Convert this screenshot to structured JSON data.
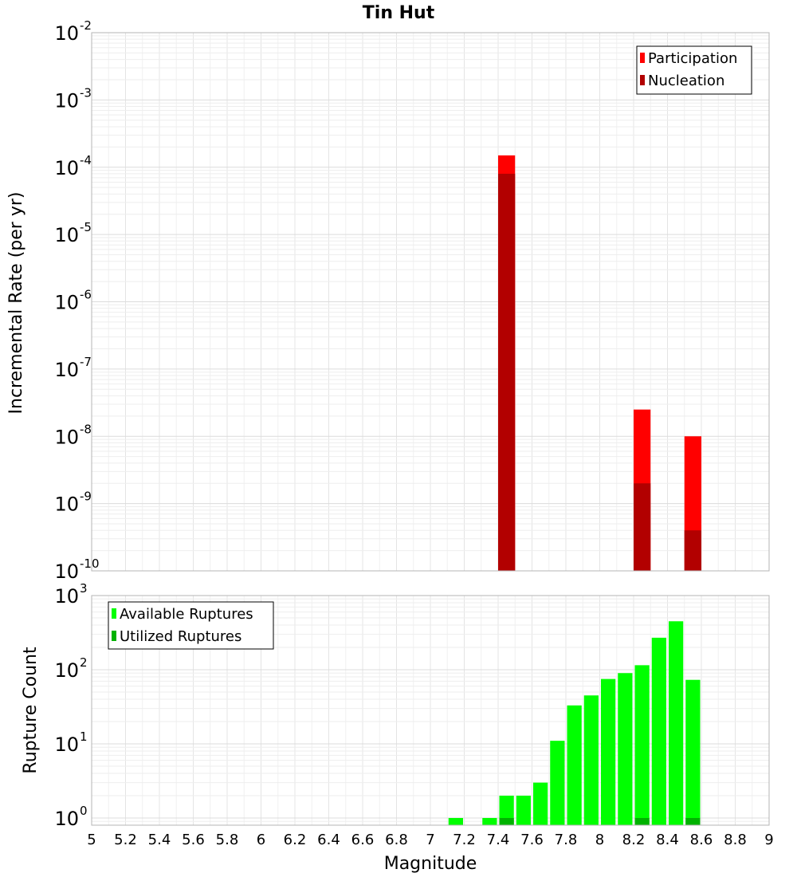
{
  "chart_data": [
    {
      "type": "bar",
      "title": "Tin Hut",
      "xlabel": "",
      "ylabel": "Incremental Rate (per yr)",
      "xlim": [
        5,
        9
      ],
      "ylim": [
        1e-10,
        0.01
      ],
      "yscale": "log",
      "bar_width": 0.1,
      "grid": true,
      "legend_position": "top-right",
      "colors": {
        "participation": "#ff0000",
        "nucleation": "#b20000"
      },
      "yticks": [
        {
          "base": "10",
          "exp": "-10"
        },
        {
          "base": "10",
          "exp": "-9"
        },
        {
          "base": "10",
          "exp": "-8"
        },
        {
          "base": "10",
          "exp": "-7"
        },
        {
          "base": "10",
          "exp": "-6"
        },
        {
          "base": "10",
          "exp": "-5"
        },
        {
          "base": "10",
          "exp": "-4"
        },
        {
          "base": "10",
          "exp": "-3"
        },
        {
          "base": "10",
          "exp": "-2"
        }
      ],
      "series": [
        {
          "name": "Participation",
          "x": [
            7.45,
            8.25,
            8.55
          ],
          "values": [
            0.00015,
            2.5e-08,
            1e-08
          ]
        },
        {
          "name": "Nucleation",
          "x": [
            7.45,
            8.25,
            8.55
          ],
          "values": [
            8e-05,
            2e-09,
            4e-10
          ]
        }
      ]
    },
    {
      "type": "bar",
      "title": "",
      "xlabel": "Magnitude",
      "ylabel": "Rupture Count",
      "xlim": [
        5,
        9
      ],
      "ylim": [
        0.8,
        1000
      ],
      "yscale": "log",
      "bar_width": 0.1,
      "grid": true,
      "legend_position": "top-left",
      "colors": {
        "available": "#00ff00",
        "utilized": "#00b200"
      },
      "xticks": [
        "5",
        "5.2",
        "5.4",
        "5.6",
        "5.8",
        "6",
        "6.2",
        "6.4",
        "6.6",
        "6.8",
        "7",
        "7.2",
        "7.4",
        "7.6",
        "7.8",
        "8",
        "8.2",
        "8.4",
        "8.6",
        "8.8",
        "9"
      ],
      "yticks": [
        {
          "base": "10",
          "exp": "0"
        },
        {
          "base": "10",
          "exp": "1"
        },
        {
          "base": "10",
          "exp": "2"
        },
        {
          "base": "10",
          "exp": "3"
        }
      ],
      "series": [
        {
          "name": "Available Ruptures",
          "x": [
            7.15,
            7.35,
            7.45,
            7.55,
            7.65,
            7.75,
            7.85,
            7.95,
            8.05,
            8.15,
            8.25,
            8.35,
            8.45,
            8.55
          ],
          "values": [
            1,
            1,
            2,
            2,
            3,
            11,
            33,
            45,
            75,
            90,
            115,
            270,
            450,
            73
          ]
        },
        {
          "name": "Utilized Ruptures",
          "x": [
            7.45,
            8.25,
            8.55
          ],
          "values": [
            1,
            1,
            1
          ]
        }
      ]
    }
  ]
}
